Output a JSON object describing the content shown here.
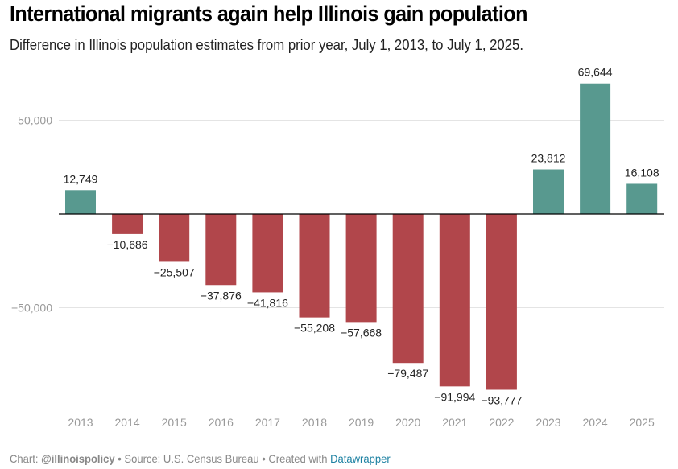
{
  "header": {
    "title": "International migrants again help Illinois gain population",
    "subtitle": "Difference in Illinois population estimates from prior year, July 1, 2013, to July 1, 2025."
  },
  "footer": {
    "chart_prefix": "Chart: ",
    "chart_author": "@illinoispolicy",
    "sep1": " • Source: U.S. Census Bureau • Created with ",
    "tool": "Datawrapper"
  },
  "colors": {
    "positive": "#58998f",
    "negative": "#b1464b",
    "grid": "#e4e4e4",
    "axis": "#000000",
    "tick_text": "#999999",
    "label_text": "#222222"
  },
  "chart_data": {
    "type": "bar",
    "title": "International migrants again help Illinois gain population",
    "subtitle": "Difference in Illinois population estimates from prior year, July 1, 2013, to July 1, 2025.",
    "xlabel": "",
    "ylabel": "",
    "categories": [
      "2013",
      "2014",
      "2015",
      "2016",
      "2017",
      "2018",
      "2019",
      "2020",
      "2021",
      "2022",
      "2023",
      "2024",
      "2025"
    ],
    "values": [
      12749,
      -10686,
      -25507,
      -37876,
      -41816,
      -55208,
      -57668,
      -79487,
      -91994,
      -93777,
      23812,
      69644,
      16108
    ],
    "value_labels": [
      "12,749",
      "−10,686",
      "−25,507",
      "−37,876",
      "−41,816",
      "−55,208",
      "−57,668",
      "−79,487",
      "−91,994",
      "−93,777",
      "23,812",
      "69,644",
      "16,108"
    ],
    "yticks": [
      50000,
      -50000
    ],
    "ytick_labels": [
      "50,000",
      "−50,000"
    ],
    "ylim": [
      -100000,
      75000
    ],
    "grid": true,
    "legend": "none"
  }
}
